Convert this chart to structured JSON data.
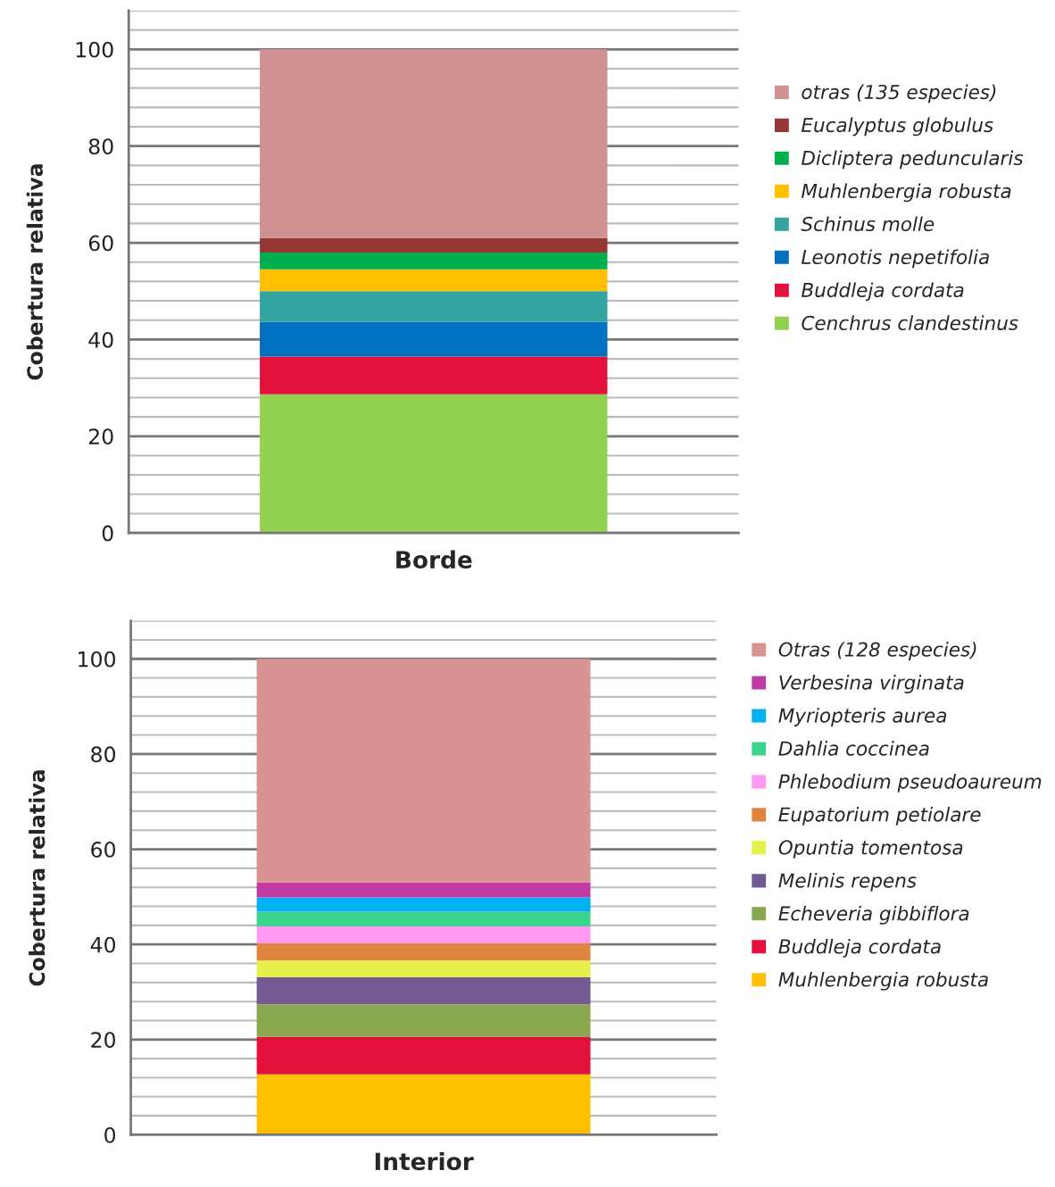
{
  "chart_data": [
    {
      "type": "bar",
      "stacked": true,
      "categories": [
        "Borde"
      ],
      "ylabel": "Cobertura relativa",
      "ylim": [
        0,
        108
      ],
      "yticks": [
        0,
        {
          "value": 4,
          "label": null
        },
        {
          "value": 8,
          "label": null
        },
        {
          "value": 12,
          "label": null
        },
        {
          "value": 16,
          "label": null
        },
        20,
        {
          "value": 24,
          "label": null
        },
        {
          "value": 28,
          "label": null
        },
        {
          "value": 32,
          "label": null
        },
        {
          "value": 36,
          "label": null
        },
        40,
        {
          "value": 44,
          "label": null
        },
        {
          "value": 48,
          "label": null
        },
        {
          "value": 52,
          "label": null
        },
        {
          "value": 56,
          "label": null
        },
        60,
        {
          "value": 64,
          "label": null
        },
        {
          "value": 68,
          "label": null
        },
        {
          "value": 72,
          "label": null
        },
        {
          "value": 76,
          "label": null
        },
        80,
        {
          "value": 84,
          "label": null
        },
        {
          "value": 88,
          "label": null
        },
        {
          "value": 92,
          "label": null
        },
        {
          "value": 96,
          "label": null
        },
        100,
        {
          "value": 104,
          "label": null
        },
        {
          "value": 108,
          "label": null
        }
      ],
      "grid": "y",
      "legend": "right",
      "series": [
        {
          "name": "Cenchrus clandestinus",
          "color": "#92d050",
          "values": [
            28.7
          ]
        },
        {
          "name": "Buddleja cordata",
          "color": "#e2113b",
          "values": [
            7.8
          ]
        },
        {
          "name": "Leonotis nepetifolia",
          "color": "#0070c0",
          "values": [
            7.2
          ]
        },
        {
          "name": "Schinus molle",
          "color": "#33a49f",
          "values": [
            6.3
          ]
        },
        {
          "name": "Muhlenbergia robusta",
          "color": "#ffc000",
          "values": [
            4.5
          ]
        },
        {
          "name": "Dicliptera peduncularis",
          "color": "#00b050",
          "values": [
            3.5
          ]
        },
        {
          "name": "Eucalyptus globulus",
          "color": "#953735",
          "values": [
            3.0
          ]
        },
        {
          "name": "otras (135 especies)",
          "color": "#d09290",
          "values": [
            39.0
          ]
        }
      ]
    },
    {
      "type": "bar",
      "stacked": true,
      "categories": [
        "Interior"
      ],
      "ylabel": "Cobertura relativa",
      "ylim": [
        0,
        108
      ],
      "yticks": [
        0,
        {
          "value": 4,
          "label": null
        },
        {
          "value": 8,
          "label": null
        },
        {
          "value": 12,
          "label": null
        },
        {
          "value": 16,
          "label": null
        },
        20,
        {
          "value": 24,
          "label": null
        },
        {
          "value": 28,
          "label": null
        },
        {
          "value": 32,
          "label": null
        },
        {
          "value": 36,
          "label": null
        },
        40,
        {
          "value": 44,
          "label": null
        },
        {
          "value": 48,
          "label": null
        },
        {
          "value": 52,
          "label": null
        },
        {
          "value": 56,
          "label": null
        },
        60,
        {
          "value": 64,
          "label": null
        },
        {
          "value": 68,
          "label": null
        },
        {
          "value": 72,
          "label": null
        },
        {
          "value": 76,
          "label": null
        },
        80,
        {
          "value": 84,
          "label": null
        },
        {
          "value": 88,
          "label": null
        },
        {
          "value": 92,
          "label": null
        },
        {
          "value": 96,
          "label": null
        },
        100,
        {
          "value": 104,
          "label": null
        },
        {
          "value": 108,
          "label": null
        }
      ],
      "grid": "y",
      "legend": "right",
      "series": [
        {
          "name": "Muhlenbergia robusta",
          "color": "#ffc000",
          "values": [
            12.7
          ]
        },
        {
          "name": "Buddleja cordata",
          "color": "#e2113b",
          "values": [
            7.9
          ]
        },
        {
          "name": "Echeveria gibbiflora",
          "color": "#8aa64e",
          "values": [
            6.8
          ]
        },
        {
          "name": "Melinis repens",
          "color": "#735a92",
          "values": [
            5.7
          ]
        },
        {
          "name": "Opuntia tomentosa",
          "color": "#e6f04a",
          "values": [
            3.5
          ]
        },
        {
          "name": "Eupatorium petiolare",
          "color": "#de8640",
          "values": [
            3.6
          ]
        },
        {
          "name": "Phlebodium pseudoaureum",
          "color": "#ff99f2",
          "values": [
            3.6
          ]
        },
        {
          "name": "Dahlia coccinea",
          "color": "#3bd48e",
          "values": [
            3.1
          ]
        },
        {
          "name": "Myriopteris aurea",
          "color": "#00b0f0",
          "values": [
            3.0
          ]
        },
        {
          "name": "Verbesina virginata",
          "color": "#c03ca3",
          "values": [
            3.1
          ]
        },
        {
          "name": "Otras (128 especies)",
          "color": "#d89392",
          "values": [
            47.0
          ]
        }
      ]
    }
  ]
}
